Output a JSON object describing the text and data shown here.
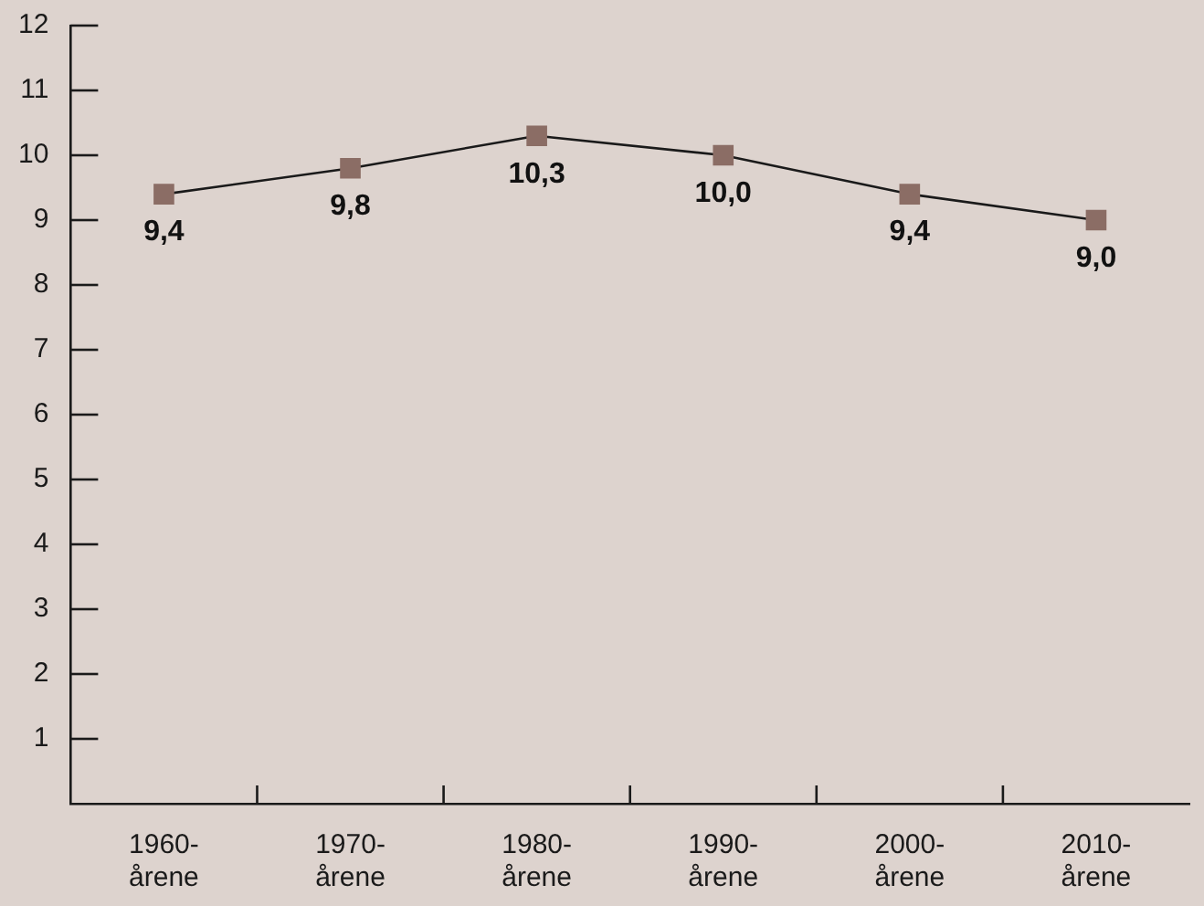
{
  "chart_data": {
    "type": "line",
    "categories": [
      "1960-årene",
      "1970-årene",
      "1980-årene",
      "1990-årene",
      "2000-årene",
      "2010-årene"
    ],
    "series": [
      {
        "color": "#8b6d65",
        "values": [
          9.4,
          9.8,
          10.3,
          10.0,
          9.4,
          9.0
        ],
        "value_labels": [
          "9,4",
          "9,8",
          "10,3",
          "10,0",
          "9,4",
          "9,0"
        ]
      }
    ],
    "ylim": [
      0,
      12
    ],
    "yticks": [
      1,
      2,
      3,
      4,
      5,
      6,
      7,
      8,
      9,
      10,
      11,
      12
    ],
    "grid": false,
    "legend": false,
    "marker": "square",
    "line_style": "solid"
  }
}
